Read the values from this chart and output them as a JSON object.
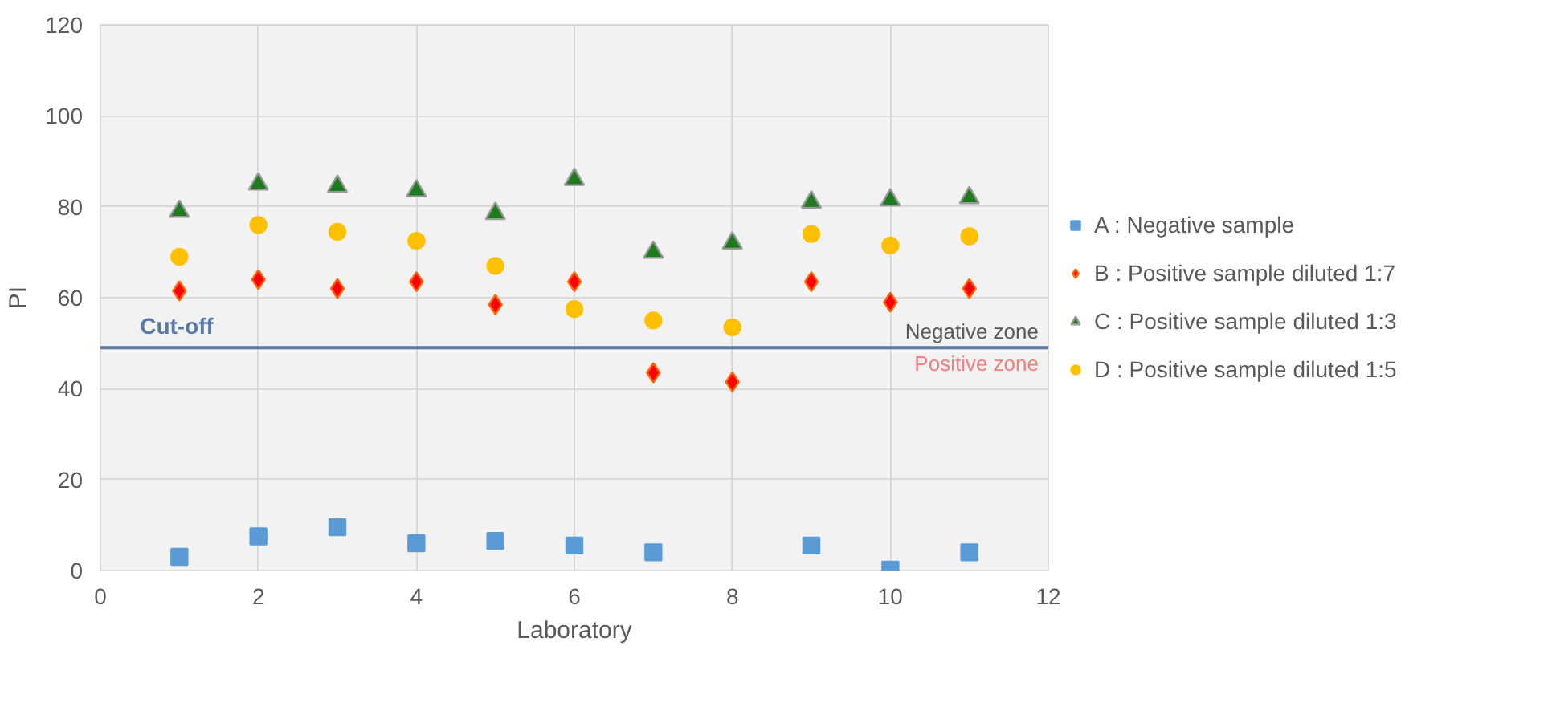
{
  "chart_data": {
    "type": "scatter",
    "xlabel": "Laboratory",
    "ylabel": "PI",
    "xlim": [
      0,
      12
    ],
    "ylim": [
      0,
      120
    ],
    "xticks": [
      0,
      2,
      4,
      6,
      8,
      10,
      12
    ],
    "yticks": [
      0,
      20,
      40,
      60,
      80,
      100,
      120
    ],
    "grid": true,
    "legend": "right",
    "series": [
      {
        "name": "A : Negative sample",
        "color": "#5b9bd5",
        "marker": "square",
        "x": [
          1,
          2,
          3,
          4,
          5,
          6,
          7,
          9,
          10,
          11
        ],
        "values": [
          3,
          7.5,
          9.5,
          6,
          6.5,
          5.5,
          4,
          5.5,
          0.2,
          4
        ]
      },
      {
        "name": "B : Positive sample diluted 1:7",
        "color": "#ff0000",
        "marker": "diamond",
        "x": [
          1,
          2,
          3,
          4,
          5,
          6,
          7,
          8,
          9,
          10,
          11
        ],
        "values": [
          61.5,
          64,
          62,
          63.5,
          58.5,
          63.5,
          43.5,
          41.5,
          63.5,
          59,
          62
        ]
      },
      {
        "name": "C : Positive sample diluted 1:3",
        "color": "#1e7b1e",
        "marker": "triangle",
        "x": [
          1,
          2,
          3,
          4,
          5,
          6,
          7,
          8,
          9,
          10,
          11
        ],
        "values": [
          79,
          85,
          84.5,
          83.5,
          78.5,
          86,
          70,
          72,
          81,
          81.5,
          82
        ]
      },
      {
        "name": "D : Positive sample diluted 1:5",
        "color": "#ffc000",
        "marker": "circle",
        "x": [
          1,
          2,
          3,
          4,
          5,
          6,
          7,
          8,
          9,
          10,
          11
        ],
        "values": [
          69,
          76,
          74.5,
          72.5,
          67,
          57.5,
          55,
          53.5,
          74,
          71.5,
          73.5
        ]
      }
    ],
    "ref_lines": [
      {
        "axis": "y",
        "value": 49,
        "label": "Cut-off",
        "color": "#5a7aa6"
      }
    ],
    "annotations": [
      "Negative zone",
      "Positive zone"
    ]
  }
}
